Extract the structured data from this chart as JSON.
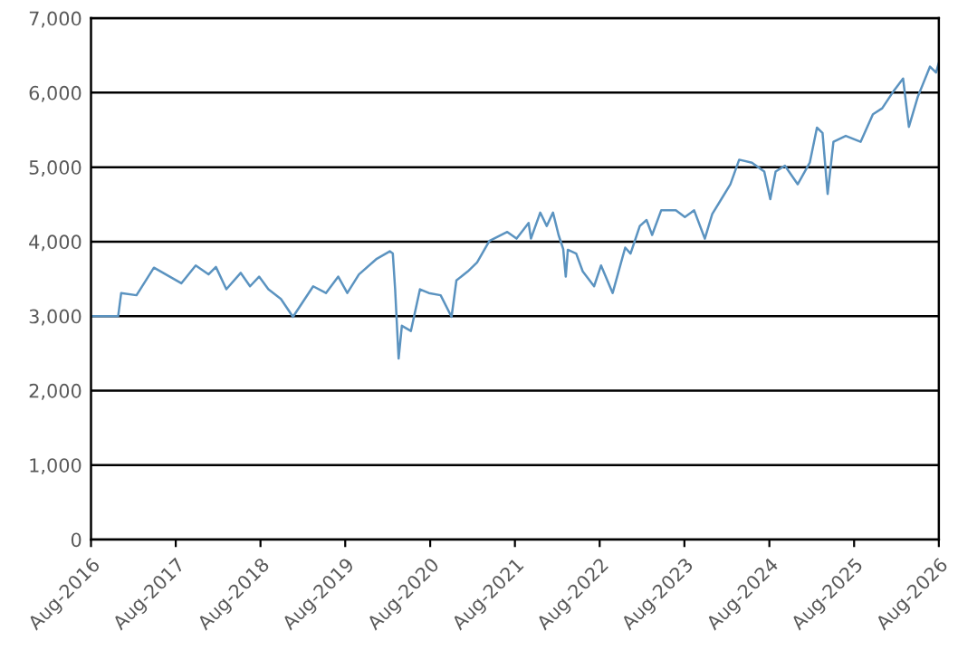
{
  "chart_data": {
    "type": "line",
    "x": [
      "2016-08-01",
      "2016-11-26",
      "2016-12-09",
      "2017-02-13",
      "2017-04-29",
      "2017-08-25",
      "2017-10-26",
      "2017-12-20",
      "2018-01-21",
      "2018-03-07",
      "2018-05-08",
      "2018-06-17",
      "2018-07-26",
      "2018-09-04",
      "2018-10-28",
      "2018-12-19",
      "2019-03-16",
      "2019-05-10",
      "2019-07-02",
      "2019-08-10",
      "2019-09-29",
      "2019-12-15",
      "2020-02-09",
      "2020-02-22",
      "2020-03-03",
      "2020-03-18",
      "2020-04-01",
      "2020-05-10",
      "2020-06-18",
      "2020-07-26",
      "2020-09-15",
      "2020-11-01",
      "2020-11-22",
      "2021-01-10",
      "2021-02-19",
      "2021-04-13",
      "2021-06-29",
      "2021-08-08",
      "2021-09-29",
      "2021-10-09",
      "2021-11-18",
      "2021-12-16",
      "2022-01-12",
      "2022-02-05",
      "2022-02-25",
      "2022-03-08",
      "2022-03-17",
      "2022-04-22",
      "2022-05-20",
      "2022-07-08",
      "2022-08-07",
      "2022-09-26",
      "2022-11-19",
      "2022-12-12",
      "2023-01-21",
      "2023-02-19",
      "2023-03-15",
      "2023-04-23",
      "2023-06-25",
      "2023-08-03",
      "2023-09-12",
      "2023-10-28",
      "2023-11-29",
      "2024-01-07",
      "2024-02-15",
      "2024-03-24",
      "2024-05-18",
      "2024-07-10",
      "2024-08-05",
      "2024-08-28",
      "2024-10-07",
      "2024-12-01",
      "2025-01-22",
      "2025-02-22",
      "2025-03-18",
      "2025-04-09",
      "2025-05-04",
      "2025-06-26",
      "2025-08-29",
      "2025-10-21",
      "2025-11-30",
      "2026-01-20",
      "2026-02-28",
      "2026-03-25",
      "2026-05-03",
      "2026-06-24",
      "2026-07-20",
      "2026-08-01"
    ],
    "series": [
      {
        "color": "#5b93c0",
        "values": [
          3000,
          3000,
          3310,
          3280,
          3650,
          3440,
          3680,
          3560,
          3660,
          3360,
          3580,
          3400,
          3530,
          3360,
          3230,
          2990,
          3400,
          3310,
          3530,
          3310,
          3560,
          3770,
          3870,
          3840,
          3360,
          2430,
          2870,
          2800,
          3360,
          3310,
          3280,
          2990,
          3480,
          3600,
          3720,
          4010,
          4130,
          4040,
          4250,
          4040,
          4390,
          4210,
          4390,
          4090,
          3900,
          3530,
          3890,
          3840,
          3600,
          3400,
          3680,
          3310,
          3920,
          3840,
          4210,
          4290,
          4090,
          4420,
          4420,
          4330,
          4420,
          4040,
          4370,
          4570,
          4770,
          5100,
          5060,
          4940,
          4570,
          4940,
          5020,
          4770,
          5060,
          5530,
          5460,
          4640,
          5340,
          5420,
          5340,
          5710,
          5790,
          6030,
          6190,
          5540,
          5950,
          6350,
          6270,
          6400
        ]
      }
    ],
    "xlim": [
      "2016-08-01",
      "2026-08-01"
    ],
    "xticks": [
      {
        "value": "2016-08-01",
        "label": "Aug-2016"
      },
      {
        "value": "2017-08-01",
        "label": "Aug-2017"
      },
      {
        "value": "2018-08-01",
        "label": "Aug-2018"
      },
      {
        "value": "2019-08-01",
        "label": "Aug-2019"
      },
      {
        "value": "2020-08-01",
        "label": "Aug-2020"
      },
      {
        "value": "2021-08-01",
        "label": "Aug-2021"
      },
      {
        "value": "2022-08-01",
        "label": "Aug-2022"
      },
      {
        "value": "2023-08-01",
        "label": "Aug-2023"
      },
      {
        "value": "2024-08-01",
        "label": "Aug-2024"
      },
      {
        "value": "2025-08-01",
        "label": "Aug-2025"
      },
      {
        "value": "2026-08-01",
        "label": "Aug-2026"
      }
    ],
    "ylim": [
      0,
      7000
    ],
    "yticks": [
      0,
      {
        "value": 1000,
        "label": "1,000"
      },
      {
        "value": 2000,
        "label": "2,000"
      },
      {
        "value": 3000,
        "label": "3,000"
      },
      {
        "value": 4000,
        "label": "4,000"
      },
      {
        "value": 5000,
        "label": "5,000"
      },
      {
        "value": 6000,
        "label": "6,000"
      },
      {
        "value": 7000,
        "label": "7,000"
      }
    ],
    "grid": "y",
    "marker": "none",
    "line_style": "solid"
  }
}
